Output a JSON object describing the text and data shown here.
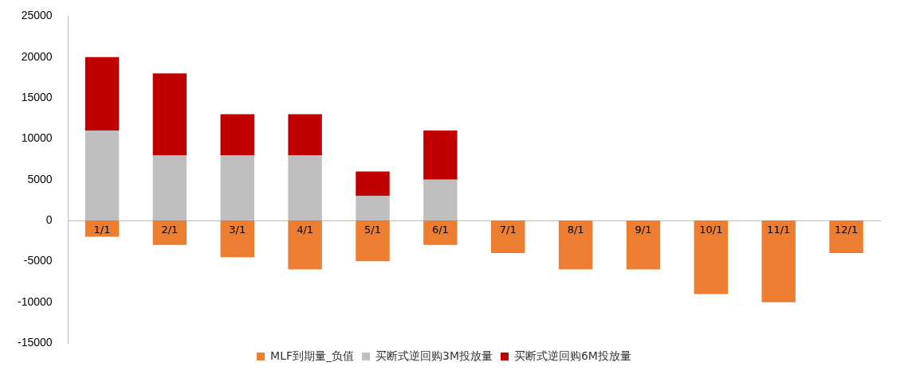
{
  "chart_data": {
    "type": "bar",
    "stacked": true,
    "categories": [
      "1/1",
      "2/1",
      "3/1",
      "4/1",
      "5/1",
      "6/1",
      "7/1",
      "8/1",
      "9/1",
      "10/1",
      "11/1",
      "12/1"
    ],
    "series": [
      {
        "name": "MLF到期量_负值",
        "color": "#ed7d31",
        "values": [
          -2000,
          -3000,
          -4500,
          -6000,
          -5000,
          -3000,
          -4000,
          -6000,
          -6000,
          -9000,
          -10000,
          -4000
        ]
      },
      {
        "name": "买断式逆回购3M投放量",
        "color": "#bfbfbf",
        "values": [
          11000,
          8000,
          8000,
          8000,
          3000,
          5000,
          null,
          null,
          null,
          null,
          null,
          null
        ]
      },
      {
        "name": "买断式逆回购6M投放量",
        "color": "#c00000",
        "values": [
          9000,
          10000,
          5000,
          5000,
          3000,
          6000,
          null,
          null,
          null,
          null,
          null,
          null
        ]
      }
    ],
    "ylim": [
      -15000,
      25000
    ],
    "yticks": [
      -15000,
      -10000,
      -5000,
      0,
      5000,
      10000,
      15000,
      20000,
      25000
    ],
    "grid": false,
    "legend": "bottom"
  }
}
